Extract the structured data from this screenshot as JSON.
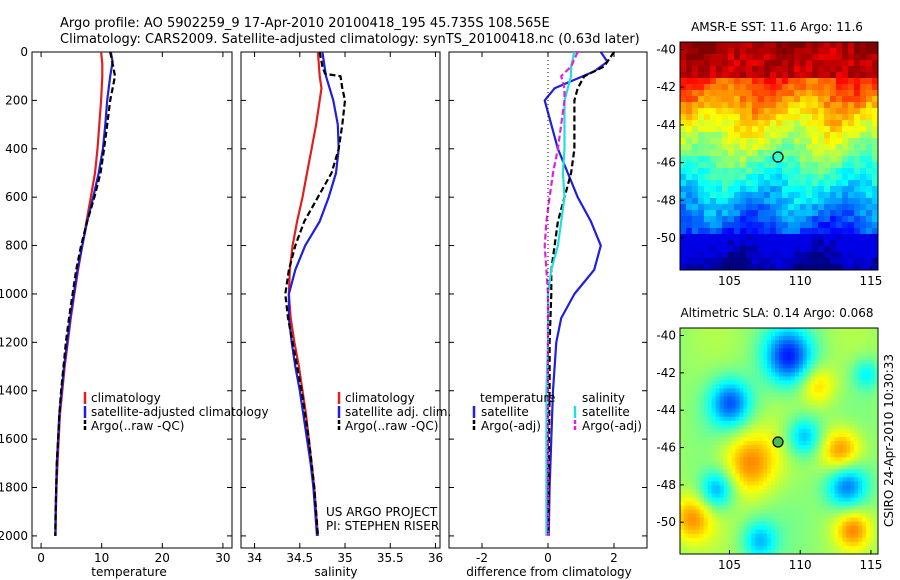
{
  "header": {
    "title_line1": "Argo profile: AO 5902259_9 17-Apr-2010 20100418_195 45.735S 108.565E",
    "title_line2": "Climatology: CARS2009. Satellite-adjusted climatology: synTS_20100418.nc (0.63d later)"
  },
  "colors": {
    "red": "#e02020",
    "blue": "#1f1fdc",
    "black": "#000000",
    "cyan": "#22dede",
    "magenta": "#e020e0"
  },
  "chart_data": [
    {
      "type": "line",
      "panel": "temperature",
      "xlabel": "temperature",
      "ylabel": "",
      "xlim": [
        -1.5,
        31.5
      ],
      "ylim": [
        2050,
        0
      ],
      "xticks": [
        0,
        10,
        20,
        30
      ],
      "yticks": [
        0,
        200,
        400,
        600,
        800,
        1000,
        1200,
        1400,
        1600,
        1800,
        2000
      ],
      "legend_position": "lower-right",
      "series": [
        {
          "name": "climatology",
          "color": "red",
          "dash": "solid",
          "points": [
            [
              9.9,
              0
            ],
            [
              10.1,
              50
            ],
            [
              10.1,
              100
            ],
            [
              9.9,
              200
            ],
            [
              9.6,
              300
            ],
            [
              9.3,
              400
            ],
            [
              8.9,
              500
            ],
            [
              8.2,
              600
            ],
            [
              7.5,
              700
            ],
            [
              6.8,
              800
            ],
            [
              6.1,
              900
            ],
            [
              5.5,
              1000
            ],
            [
              4.9,
              1100
            ],
            [
              4.4,
              1200
            ],
            [
              3.9,
              1300
            ],
            [
              3.5,
              1400
            ],
            [
              3.1,
              1500
            ],
            [
              2.9,
              1600
            ],
            [
              2.7,
              1700
            ],
            [
              2.55,
              1800
            ],
            [
              2.45,
              1900
            ],
            [
              2.4,
              2000
            ]
          ]
        },
        {
          "name": "satellite-adjusted climatology",
          "color": "blue",
          "dash": "solid",
          "points": [
            [
              11.5,
              0
            ],
            [
              11.8,
              40
            ],
            [
              11.4,
              100
            ],
            [
              10.9,
              200
            ],
            [
              10.6,
              300
            ],
            [
              10.2,
              400
            ],
            [
              9.5,
              500
            ],
            [
              8.6,
              600
            ],
            [
              7.6,
              700
            ],
            [
              6.8,
              800
            ],
            [
              6.0,
              900
            ],
            [
              5.4,
              1000
            ],
            [
              4.8,
              1100
            ],
            [
              4.3,
              1200
            ],
            [
              3.8,
              1300
            ],
            [
              3.4,
              1400
            ],
            [
              3.0,
              1500
            ],
            [
              2.8,
              1600
            ],
            [
              2.6,
              1700
            ],
            [
              2.5,
              1800
            ],
            [
              2.4,
              1900
            ],
            [
              2.35,
              2000
            ]
          ]
        },
        {
          "name": "Argo(..raw -QC)",
          "color": "black",
          "dash": "dash",
          "points": [
            [
              11.4,
              0
            ],
            [
              11.9,
              60
            ],
            [
              12.2,
              100
            ],
            [
              11.4,
              200
            ],
            [
              10.9,
              300
            ],
            [
              10.4,
              400
            ],
            [
              9.8,
              500
            ],
            [
              8.8,
              600
            ],
            [
              7.6,
              700
            ],
            [
              6.6,
              800
            ],
            [
              5.8,
              900
            ],
            [
              5.2,
              1000
            ],
            [
              4.6,
              1100
            ],
            [
              4.1,
              1200
            ],
            [
              3.7,
              1300
            ],
            [
              3.3,
              1400
            ],
            [
              3.0,
              1500
            ],
            [
              2.8,
              1600
            ],
            [
              2.6,
              1700
            ],
            [
              2.5,
              1800
            ],
            [
              2.4,
              1900
            ],
            [
              2.35,
              2000
            ]
          ]
        }
      ]
    },
    {
      "type": "line",
      "panel": "salinity",
      "xlabel": "salinity",
      "xlim": [
        33.85,
        36.05
      ],
      "ylim": [
        2050,
        0
      ],
      "xticks": [
        34,
        34.5,
        35,
        35.5,
        36
      ],
      "xticklabels": [
        "34",
        "34.5",
        "35",
        "35.5",
        "36"
      ],
      "legend_position": "lower-right",
      "series": [
        {
          "name": "climatology",
          "color": "red",
          "dash": "solid",
          "points": [
            [
              34.7,
              0
            ],
            [
              34.72,
              100
            ],
            [
              34.74,
              150
            ],
            [
              34.72,
              200
            ],
            [
              34.68,
              300
            ],
            [
              34.63,
              400
            ],
            [
              34.58,
              500
            ],
            [
              34.53,
              600
            ],
            [
              34.47,
              700
            ],
            [
              34.42,
              800
            ],
            [
              34.39,
              900
            ],
            [
              34.38,
              1000
            ],
            [
              34.4,
              1100
            ],
            [
              34.44,
              1200
            ],
            [
              34.49,
              1300
            ],
            [
              34.53,
              1400
            ],
            [
              34.57,
              1500
            ],
            [
              34.6,
              1600
            ],
            [
              34.63,
              1700
            ],
            [
              34.66,
              1800
            ],
            [
              34.68,
              1900
            ],
            [
              34.7,
              2000
            ]
          ]
        },
        {
          "name": "satellite adj. clim.",
          "color": "blue",
          "dash": "solid",
          "points": [
            [
              34.75,
              0
            ],
            [
              34.79,
              100
            ],
            [
              34.87,
              200
            ],
            [
              34.92,
              300
            ],
            [
              34.93,
              400
            ],
            [
              34.9,
              500
            ],
            [
              34.82,
              600
            ],
            [
              34.72,
              700
            ],
            [
              34.56,
              800
            ],
            [
              34.45,
              900
            ],
            [
              34.38,
              1000
            ],
            [
              34.38,
              1100
            ],
            [
              34.41,
              1200
            ],
            [
              34.45,
              1300
            ],
            [
              34.5,
              1400
            ],
            [
              34.54,
              1500
            ],
            [
              34.58,
              1600
            ],
            [
              34.62,
              1700
            ],
            [
              34.65,
              1800
            ],
            [
              34.67,
              1900
            ],
            [
              34.69,
              2000
            ]
          ]
        },
        {
          "name": "Argo(..raw -QC)",
          "color": "black",
          "dash": "dash",
          "points": [
            [
              34.72,
              0
            ],
            [
              34.75,
              60
            ],
            [
              34.78,
              90
            ],
            [
              34.95,
              100
            ],
            [
              34.97,
              150
            ],
            [
              35.0,
              200
            ],
            [
              34.97,
              300
            ],
            [
              34.93,
              400
            ],
            [
              34.85,
              500
            ],
            [
              34.7,
              600
            ],
            [
              34.55,
              700
            ],
            [
              34.45,
              800
            ],
            [
              34.38,
              900
            ],
            [
              34.34,
              1000
            ],
            [
              34.37,
              1100
            ],
            [
              34.42,
              1200
            ],
            [
              34.47,
              1300
            ],
            [
              34.52,
              1400
            ],
            [
              34.56,
              1500
            ],
            [
              34.6,
              1600
            ],
            [
              34.63,
              1700
            ],
            [
              34.66,
              1800
            ],
            [
              34.68,
              1900
            ],
            [
              34.7,
              2000
            ]
          ]
        }
      ]
    },
    {
      "type": "line",
      "panel": "difference",
      "xlabel": "difference from climatology",
      "xlim": [
        -3,
        3
      ],
      "ylim": [
        2050,
        0
      ],
      "xticks": [
        -2,
        0,
        2
      ],
      "xticklabels": [
        "-2",
        "0",
        "2"
      ],
      "legend_position": "lower",
      "legend_heading_left": "temperature",
      "legend_heading_right": "salinity",
      "series": [
        {
          "name": "satellite",
          "group": "temperature",
          "color": "blue",
          "dash": "solid",
          "points": [
            [
              1.6,
              0
            ],
            [
              1.8,
              40
            ],
            [
              1.4,
              80
            ],
            [
              0.2,
              150
            ],
            [
              -0.1,
              200
            ],
            [
              0.1,
              300
            ],
            [
              0.3,
              400
            ],
            [
              0.6,
              500
            ],
            [
              0.9,
              600
            ],
            [
              1.3,
              700
            ],
            [
              1.6,
              800
            ],
            [
              1.4,
              900
            ],
            [
              0.8,
              1000
            ],
            [
              0.4,
              1100
            ],
            [
              0.25,
              1200
            ],
            [
              0.15,
              1400
            ],
            [
              0.1,
              1600
            ],
            [
              0.05,
              1800
            ],
            [
              0.02,
              2000
            ]
          ]
        },
        {
          "name": "Argo(-adj)",
          "group": "temperature",
          "color": "black",
          "dash": "dash",
          "points": [
            [
              2.0,
              0
            ],
            [
              1.7,
              60
            ],
            [
              1.1,
              100
            ],
            [
              0.9,
              150
            ],
            [
              0.8,
              200
            ],
            [
              0.8,
              300
            ],
            [
              0.8,
              400
            ],
            [
              0.7,
              500
            ],
            [
              0.5,
              600
            ],
            [
              0.3,
              700
            ],
            [
              0.2,
              800
            ],
            [
              0.1,
              900
            ],
            [
              0.1,
              1000
            ],
            [
              0.05,
              1200
            ],
            [
              0.05,
              1400
            ],
            [
              0.03,
              1600
            ],
            [
              0.02,
              1800
            ],
            [
              0.0,
              2000
            ]
          ]
        },
        {
          "name": "satellite",
          "group": "salinity",
          "color": "cyan",
          "dash": "solid",
          "points": [
            [
              0.8,
              0
            ],
            [
              0.7,
              60
            ],
            [
              0.7,
              100
            ],
            [
              0.6,
              150
            ],
            [
              0.5,
              200
            ],
            [
              0.5,
              300
            ],
            [
              0.5,
              400
            ],
            [
              0.45,
              500
            ],
            [
              0.5,
              600
            ],
            [
              0.4,
              700
            ],
            [
              0.3,
              800
            ],
            [
              0.1,
              900
            ],
            [
              0.0,
              1000
            ],
            [
              0.0,
              1200
            ],
            [
              -0.05,
              1400
            ],
            [
              -0.05,
              1600
            ],
            [
              -0.05,
              1800
            ],
            [
              -0.05,
              2000
            ]
          ]
        },
        {
          "name": "Argo(-adj)",
          "group": "salinity",
          "color": "magenta",
          "dash": "dash",
          "points": [
            [
              0.9,
              0
            ],
            [
              0.7,
              60
            ],
            [
              0.4,
              100
            ],
            [
              0.5,
              150
            ],
            [
              0.5,
              200
            ],
            [
              0.4,
              300
            ],
            [
              0.3,
              400
            ],
            [
              0.15,
              500
            ],
            [
              0.05,
              600
            ],
            [
              -0.05,
              700
            ],
            [
              -0.1,
              800
            ],
            [
              -0.05,
              900
            ],
            [
              0.0,
              1000
            ],
            [
              0.0,
              1200
            ],
            [
              0.0,
              1400
            ],
            [
              0.0,
              1600
            ],
            [
              0.0,
              1800
            ],
            [
              0.0,
              2000
            ]
          ]
        },
        {
          "name": "zero",
          "group": "reference",
          "color": "black",
          "dash": "dot",
          "points": [
            [
              0,
              0
            ],
            [
              0,
              2000
            ]
          ]
        }
      ]
    },
    {
      "type": "heatmap",
      "panel": "sst_map",
      "title": "AMSR-E SST: 11.6 Argo: 11.6",
      "xlim": [
        101.5,
        115.5
      ],
      "ylim": [
        -51.7,
        -39.6
      ],
      "xticks": [
        105,
        110,
        115
      ],
      "yticks": [
        -40,
        -42,
        -44,
        -46,
        -48,
        -50
      ],
      "marker": {
        "lon": 108.565,
        "lat": -45.735
      }
    },
    {
      "type": "heatmap",
      "panel": "sla_map",
      "title": "Altimetric SLA: 0.14 Argo: 0.068",
      "xlim": [
        101.5,
        115.5
      ],
      "ylim": [
        -51.7,
        -39.6
      ],
      "xticks": [
        105,
        110,
        115
      ],
      "yticks": [
        -40,
        -42,
        -44,
        -46,
        -48,
        -50
      ],
      "marker": {
        "lon": 108.565,
        "lat": -45.735
      }
    }
  ],
  "annotations": {
    "project_line1": "US ARGO PROJECT",
    "project_line2": "PI: STEPHEN RISER",
    "credit": "CSIRO 24-Apr-2010 10:30:33"
  }
}
